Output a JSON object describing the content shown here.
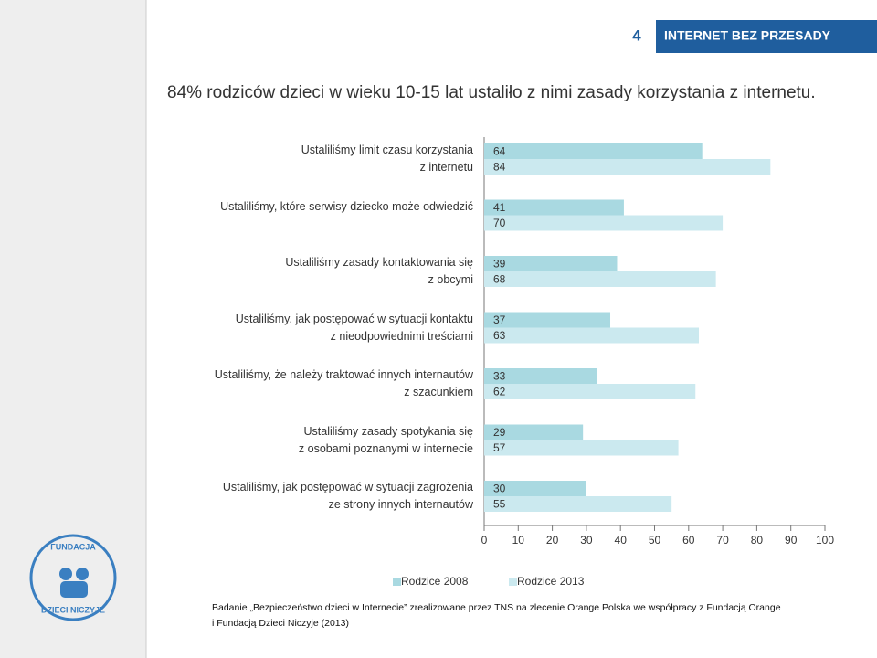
{
  "header": {
    "page_number": "4",
    "section": "INTERNET BEZ PRZESADY"
  },
  "logo": {
    "top": "FUNDACJA",
    "bottom": "DZIECI NICZYJE"
  },
  "chart_data": {
    "type": "hbar",
    "title": "84% rodziców dzieci w wieku 10-15 lat ustaliło z nimi zasady korzystania z internetu.",
    "categories": [
      "Ustaliliśmy limit czasu korzystania\nz internetu",
      "Ustaliliśmy, które serwisy dziecko może odwiedzić",
      "Ustaliliśmy zasady kontaktowania się\nz obcymi",
      "Ustaliliśmy, jak postępować w sytuacji kontaktu\nz nieodpowiednimi treściami",
      "Ustaliliśmy, że należy traktować innych internautów\nz szacunkiem",
      "Ustaliliśmy zasady spotykania się\nz osobami poznanymi w internecie",
      "Ustaliliśmy, jak postępować w sytuacji zagrożenia\nze strony innych internautów"
    ],
    "series": [
      {
        "name": "Rodzice 2008",
        "color": "#a9d9e1",
        "values": [
          64,
          41,
          39,
          37,
          33,
          29,
          30
        ]
      },
      {
        "name": "Rodzice 2013",
        "color": "#cbe9ef",
        "values": [
          84,
          70,
          68,
          63,
          62,
          57,
          55
        ]
      }
    ],
    "xlim": [
      0,
      100
    ],
    "xticks": [
      0,
      10,
      20,
      30,
      40,
      50,
      60,
      70,
      80,
      90,
      100
    ],
    "legend": "bottom",
    "note": "Badanie „Bezpieczeństwo dzieci w Internecie” zrealizowane przez TNS na zlecenie Orange Polska we współpracy z Fundacją Orange\ni Fundacją Dzieci Niczyje (2013)"
  }
}
